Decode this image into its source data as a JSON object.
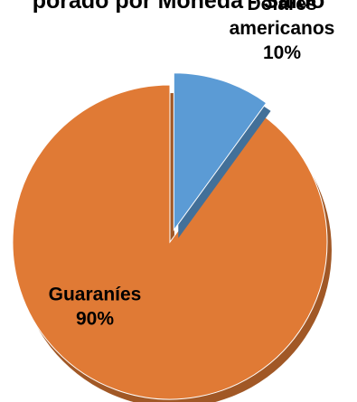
{
  "chart_data": {
    "type": "pie",
    "title": "porado por Moneda - Saldo",
    "slices": [
      {
        "name": "Guaraníes",
        "value": 90,
        "label_lines": [
          "Guaraníes",
          "90%"
        ],
        "color": "#E07A35",
        "exploded": false
      },
      {
        "name": "Dólares americanos",
        "value": 10,
        "label_lines": [
          "Dólares",
          "americanos",
          "10%"
        ],
        "color": "#5B9BD5",
        "exploded": true
      }
    ],
    "legend": "none"
  }
}
